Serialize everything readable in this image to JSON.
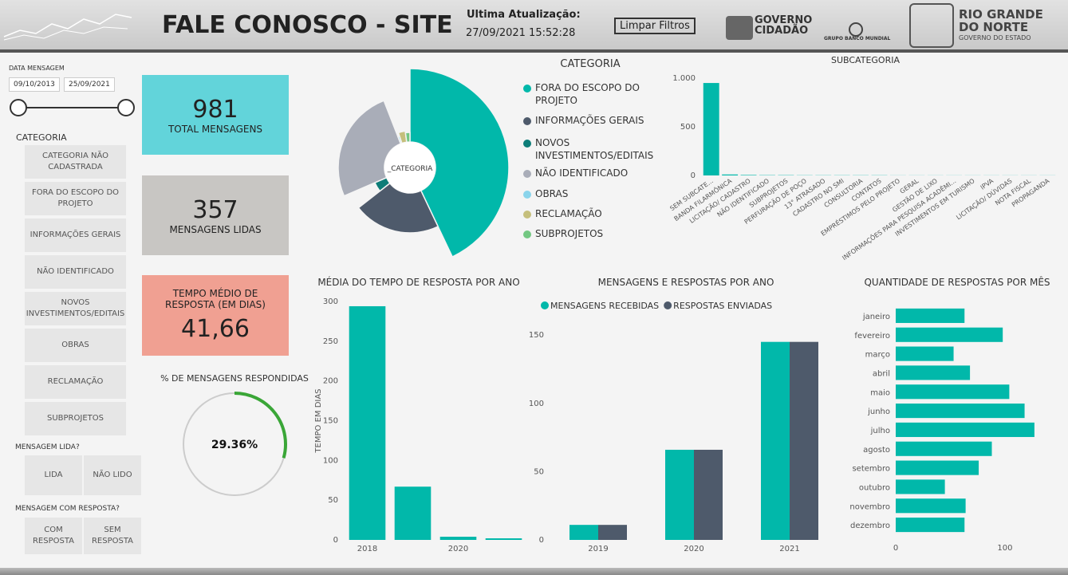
{
  "header": {
    "title": "FALE CONOSCO - SITE",
    "update_label": "Ultima Atualização:",
    "update_value": "27/09/2021 15:52:28",
    "button": "Limpar Filtros",
    "logos": [
      "GOVERNO",
      "CIDADÃO",
      "GRUPO BANCO MUNDIAL",
      "RIO GRANDE",
      "DO NORTE",
      "GOVERNO DO ESTADO"
    ]
  },
  "filters": {
    "date": {
      "title": "DATA MENSAGEM",
      "start": "09/10/2013",
      "end": "25/09/2021"
    },
    "category": {
      "title": "CATEGORIA",
      "options": [
        "CATEGORIA NÃO CADASTRADA",
        "FORA DO ESCOPO DO PROJETO",
        "INFORMAÇÕES GERAIS",
        "NÃO IDENTIFICADO",
        "NOVOS INVESTIMENTOS/EDITAIS",
        "OBRAS",
        "RECLAMAÇÃO",
        "SUBPROJETOS"
      ]
    },
    "read": {
      "title": "MENSAGEM LIDA?",
      "options": [
        "LIDA",
        "NÃO LIDO"
      ]
    },
    "answered": {
      "title": "MENSAGEM COM RESPOSTA?",
      "options": [
        "COM RESPOSTA",
        "SEM RESPOSTA"
      ]
    }
  },
  "cards": [
    {
      "value": "981",
      "label": "TOTAL MENSAGENS"
    },
    {
      "value": "357",
      "label": "MENSAGENS LIDAS"
    },
    {
      "label": "TEMPO MÉDIO DE RESPOSTA (EM DIAS)",
      "value": "41,66"
    }
  ],
  "chart_data": [
    {
      "type": "gauge",
      "title": "% DE MENSAGENS RESPONDIDAS",
      "value": 29.36,
      "value_label": "29.36%",
      "ylim": [
        0,
        100
      ],
      "color": "#3aa637"
    },
    {
      "type": "radial",
      "title": "CATEGORIA",
      "center_label": "_CATEGORIA",
      "categories": [
        "FORA DO ESCOPO DO PROJETO",
        "INFORMAÇÕES GERAIS",
        "NOVOS INVESTIMENTOS/EDITAIS",
        "NÃO IDENTIFICADO",
        "OBRAS",
        "RECLAMAÇÃO",
        "SUBPROJETOS"
      ],
      "values": [
        420,
        210,
        40,
        250,
        8,
        30,
        20
      ],
      "colors": [
        "#01b8aa",
        "#4e5a6b",
        "#0d7d78",
        "#a9adb8",
        "#8ad4eb",
        "#c5bf7c",
        "#73c782"
      ]
    },
    {
      "type": "bar",
      "title": "SUBCATEGORIA",
      "categories": [
        "SEM SUBCATE...",
        "BANDA FILARMÔNICA",
        "LICITAÇÃO/ CADASTRO",
        "NÃO IDENTIFICADO",
        "SUBPROJETOS",
        "PERFURAÇÃO DE POÇO",
        "13° ATRASADO",
        "CADASTRO NO SMI",
        "CONSULTORIA",
        "CONTATOS",
        "EMPRÉSTIMOS PELO PROJETO",
        "GERAL",
        "GESTÃO DE LIXO",
        "INFORMAÇÕES PARA PESQUISA ACADÊMI...",
        "INVESTIMENTOS EM TURISMO",
        "IPVA",
        "LICITAÇÃO/ DÚVIDAS",
        "NOTA FISCAL",
        "PROPAGANDA"
      ],
      "values": [
        951,
        10,
        5,
        3,
        3,
        2,
        2,
        2,
        2,
        2,
        1,
        1,
        1,
        1,
        1,
        1,
        1,
        1,
        1
      ],
      "color": "#01b8aa",
      "ylim": [
        0,
        1050
      ],
      "yticks": [
        0,
        500,
        {
          "value": 1000,
          "label": "1.000"
        }
      ]
    },
    {
      "type": "bar",
      "title": "MÉDIA DO TEMPO DE RESPOSTA POR ANO",
      "ylabel": "TEMPO EM DIAS",
      "categories": [
        "2018",
        null,
        "2020",
        null
      ],
      "values": [
        294,
        67,
        4,
        2
      ],
      "color": "#01b8aa",
      "ylim": [
        0,
        300
      ],
      "yticks": [
        0,
        50,
        100,
        150,
        200,
        250,
        300
      ]
    },
    {
      "type": "grouped_bar",
      "title": "MENSAGENS E RESPOSTAS POR ANO",
      "categories": [
        "2019",
        "2020",
        "2021"
      ],
      "series": [
        {
          "name": "MENSAGENS RECEBIDAS",
          "color": "#01b8aa",
          "values": [
            11,
            66,
            145
          ]
        },
        {
          "name": "RESPOSTAS ENVIADAS",
          "color": "#4e5a6b",
          "values": [
            11,
            66,
            145
          ]
        }
      ],
      "ylim": [
        0,
        160
      ],
      "yticks": [
        0,
        50,
        100,
        150
      ],
      "legend": "top-left"
    },
    {
      "type": "hbar",
      "title": "QUANTIDADE DE RESPOSTAS POR MÊS",
      "categories": [
        "janeiro",
        "fevereiro",
        "março",
        "abril",
        "maio",
        "junho",
        "julho",
        "agosto",
        "setembro",
        "outubro",
        "novembro",
        "dezembro"
      ],
      "values": [
        63,
        98,
        53,
        68,
        104,
        118,
        127,
        88,
        76,
        45,
        64,
        63
      ],
      "color": "#01b8aa",
      "xlim": [
        0,
        130
      ],
      "xticks": [
        0,
        100
      ]
    }
  ]
}
